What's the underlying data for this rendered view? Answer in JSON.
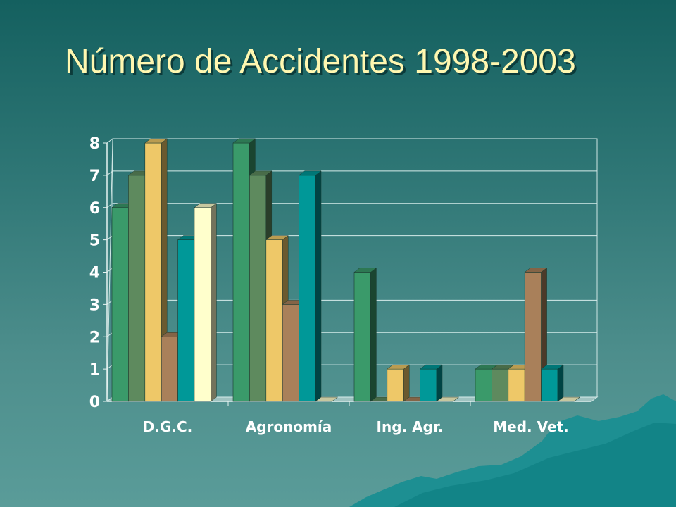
{
  "slide": {
    "title": "Número de Accidentes 1998-2003"
  },
  "chart_data": {
    "type": "bar",
    "categories": [
      "D.G.C.",
      "Agronomía",
      "Ing. Agr.",
      "Med. Vet."
    ],
    "series": [
      {
        "color": "#3a9a6a",
        "values": [
          6,
          8,
          4,
          1
        ]
      },
      {
        "color": "#5e8a5e",
        "values": [
          7,
          7,
          0,
          1
        ]
      },
      {
        "color": "#eec868",
        "values": [
          8,
          5,
          1,
          1
        ]
      },
      {
        "color": "#a9805a",
        "values": [
          2,
          3,
          0,
          4
        ]
      },
      {
        "color": "#009898",
        "values": [
          5,
          7,
          1,
          1
        ]
      },
      {
        "color": "#ffffcc",
        "values": [
          6,
          0,
          0,
          0
        ]
      }
    ],
    "ylim": [
      0,
      8
    ],
    "yticks": [
      "0",
      "1",
      "2",
      "3",
      "4",
      "5",
      "6",
      "7",
      "8"
    ],
    "grid": true,
    "style": "3d-clustered"
  }
}
